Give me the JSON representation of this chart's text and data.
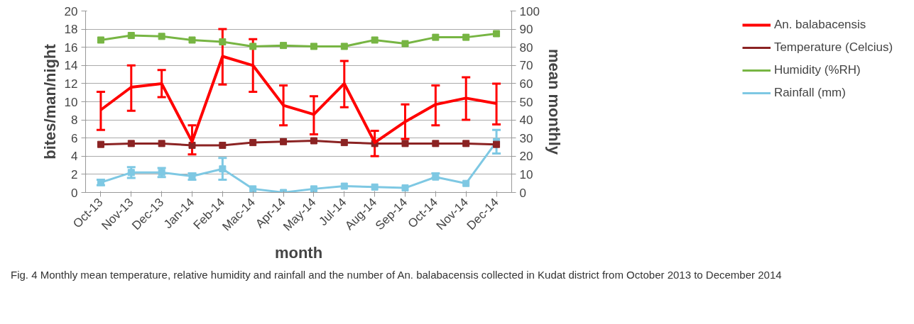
{
  "chart_data": {
    "type": "line",
    "categories": [
      "Oct-13",
      "Nov-13",
      "Dec-13",
      "Jan-14",
      "Feb-14",
      "Mac-14",
      "Apr-14",
      "May-14",
      "Jul-14",
      "Aug-14",
      "Sep-14",
      "Oct-14",
      "Nov-14",
      "Dec-14"
    ],
    "xlabel": "month",
    "ylabel": "bites/man/night",
    "y2label": "mean monthly",
    "ylim": [
      0,
      20
    ],
    "yticks": [
      0,
      2,
      4,
      6,
      8,
      10,
      12,
      14,
      16,
      18,
      20
    ],
    "y2lim": [
      0,
      100
    ],
    "y2ticks": [
      0,
      10,
      20,
      30,
      40,
      50,
      60,
      70,
      80,
      90,
      100
    ],
    "grid": "y",
    "legend": "right",
    "series": [
      {
        "name": "An. balabacensis",
        "color": "#ff0000",
        "marker": "none",
        "values": [
          9.1,
          11.6,
          12,
          5.6,
          15,
          14,
          9.6,
          8.6,
          12,
          5.5,
          7.8,
          9.7,
          10.4,
          9.8
        ],
        "errors": [
          [
            6.9,
            11.1
          ],
          [
            9,
            14
          ],
          [
            10.5,
            13.5
          ],
          [
            4.2,
            7.4
          ],
          [
            11.9,
            18
          ],
          [
            11.1,
            16.9
          ],
          [
            7.4,
            11.8
          ],
          [
            6.4,
            10.6
          ],
          [
            9.4,
            14.5
          ],
          [
            4,
            6.8
          ],
          [
            5.9,
            9.7
          ],
          [
            7.4,
            11.8
          ],
          [
            8,
            12.7
          ],
          [
            7.5,
            12
          ]
        ]
      },
      {
        "name": "Temperature (Celcius)",
        "color": "#8b2323",
        "marker": "square",
        "axis": "y2",
        "values": [
          26.5,
          27,
          27,
          26,
          26,
          27.5,
          28,
          28.5,
          27.5,
          27,
          27,
          27,
          27,
          26.5
        ]
      },
      {
        "name": "Humidity (%RH)",
        "color": "#77b543",
        "marker": "square",
        "axis": "y2",
        "values": [
          84,
          86.5,
          86,
          84,
          83,
          80.5,
          81,
          80.5,
          80.5,
          84,
          82,
          85.5,
          85.5,
          87.5
        ]
      },
      {
        "name": "Rainfall (mm)",
        "color": "#7ec8e3",
        "marker": "square",
        "axis": "y2",
        "values": [
          5.5,
          11,
          11,
          9,
          13,
          2,
          0,
          2,
          3.5,
          3,
          2.5,
          8.5,
          5,
          28
        ],
        "errors": [
          [
            4,
            7
          ],
          [
            8,
            14
          ],
          [
            8.5,
            13.5
          ],
          [
            7,
            10.5
          ],
          [
            7,
            19
          ],
          null,
          null,
          null,
          null,
          null,
          null,
          [
            8,
            10.5
          ],
          null,
          [
            21.5,
            34.5
          ]
        ]
      }
    ],
    "annotations": [
      "Fig. 4  Monthly mean temperature, relative humidity and rainfall and the number of An. balabacensis collected in Kudat district from October 2013 to December 2014"
    ]
  }
}
